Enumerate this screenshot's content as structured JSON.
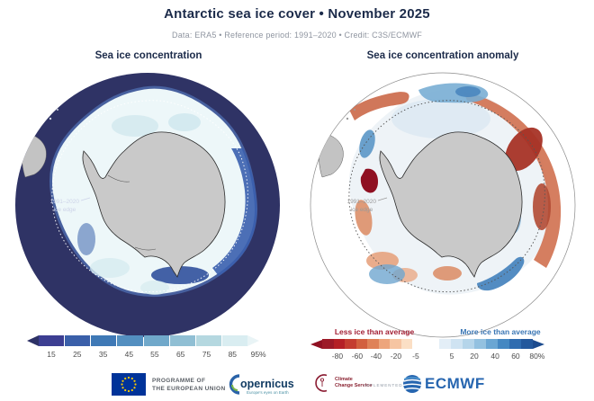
{
  "header": {
    "title": "Antarctic sea ice cover • November 2025",
    "subtitle": "Data: ERA5 • Reference period: 1991–2020 • Credit: C3S/ECMWF"
  },
  "maps": {
    "left": {
      "title": "Sea ice concentration",
      "edge_label_line1": "1991–2020",
      "edge_label_line2": "ice edge"
    },
    "right": {
      "title": "Sea ice concentration anomaly",
      "edge_label_line1": "1991–2020",
      "edge_label_line2": "ice edge",
      "legend_less": "Less ice than average",
      "legend_more": "More ice than average"
    }
  },
  "colorbars": {
    "concentration": {
      "unit": "%",
      "range": [
        15,
        95
      ],
      "colors": [
        "#3c3e92",
        "#3a5fa9",
        "#3f79b6",
        "#538fc0",
        "#70a8ca",
        "#90bfd4",
        "#b5d8e0",
        "#d9edf1"
      ],
      "arrow_left": "#2d3166",
      "arrow_right": "#e9f4f6",
      "ticks": [
        {
          "label": "15",
          "pos": 9.0
        },
        {
          "label": "25",
          "pos": 18.6
        },
        {
          "label": "35",
          "pos": 28.2
        },
        {
          "label": "45",
          "pos": 37.8
        },
        {
          "label": "55",
          "pos": 47.3
        },
        {
          "label": "65",
          "pos": 56.9
        },
        {
          "label": "75",
          "pos": 66.5
        },
        {
          "label": "85",
          "pos": 76.1
        },
        {
          "label": "95%",
          "pos": 85.7
        }
      ]
    },
    "anomaly": {
      "unit": "%",
      "range": [
        -80,
        80
      ],
      "red_colors": [
        "#9d1a28",
        "#b52026",
        "#c43d30",
        "#d2603f",
        "#df8258",
        "#eda57c",
        "#f6c5a2",
        "#fbdfc5"
      ],
      "blue_colors": [
        "#e3eef7",
        "#cfe3f2",
        "#b5d5ea",
        "#93c1e0",
        "#6aa6d3",
        "#4588c2",
        "#2f6cb0",
        "#23589c"
      ],
      "arrow_left": "#8f1022",
      "arrow_right": "#1c4b8e",
      "ticks": [
        {
          "label": "-80",
          "pos": 11.0
        },
        {
          "label": "-60",
          "pos": 19.1
        },
        {
          "label": "-40",
          "pos": 26.8
        },
        {
          "label": "-20",
          "pos": 34.9
        },
        {
          "label": "-5",
          "pos": 43.0
        },
        {
          "label": "5",
          "pos": 57.7
        },
        {
          "label": "20",
          "pos": 66.9
        },
        {
          "label": "40",
          "pos": 75.4
        },
        {
          "label": "60",
          "pos": 83.8
        },
        {
          "label": "80%",
          "pos": 92.6
        }
      ]
    }
  },
  "footer": {
    "eu_label_line1": "PROGRAMME OF",
    "eu_label_line2": "THE EUROPEAN UNION",
    "copernicus_name": "opernicus",
    "copernicus_tagline": "Europe's eyes on Earth",
    "c3s_line1": "Climate",
    "c3s_line2": "Change Service",
    "implemented_by": "IMPLEMENTED BY",
    "ecmwf": "ECMWF"
  },
  "colors": {
    "title_navy": "#1c2b4a",
    "ocean_navy": "#2f3365",
    "ice_white": "#edf7f9",
    "ice_fringe_blue": "#3a5fae",
    "continent_gray": "#c9c9c9",
    "continent_outline": "#2b2b2b",
    "anomaly_red": "#b2182b",
    "anomaly_blue": "#2166ac",
    "ecmwf_blue": "#2766b0",
    "eu_blue": "#003399",
    "eu_star_yellow": "#ffcc00"
  }
}
